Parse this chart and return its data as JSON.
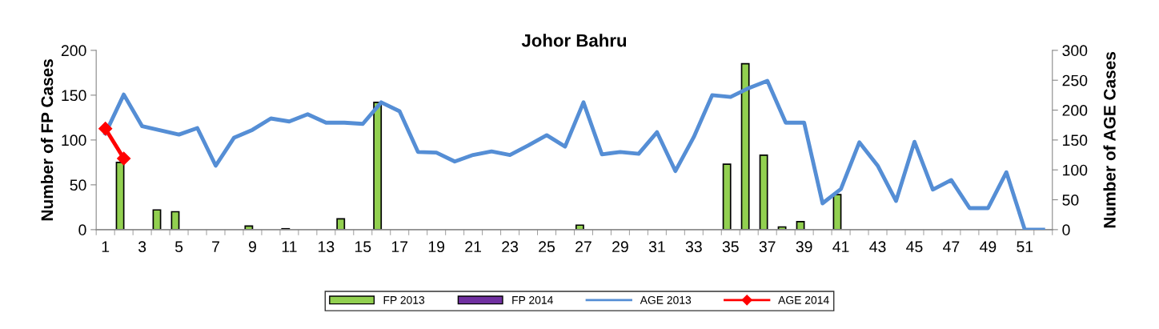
{
  "chart_data": {
    "type": "bar",
    "title": "Johor Bahru",
    "ylabel": "Number of FP Cases",
    "y2label": "Number of AGE Cases",
    "categories": [
      "1",
      null,
      "3",
      null,
      "5",
      null,
      "7",
      null,
      "9",
      null,
      "11",
      null,
      "13",
      null,
      "15",
      null,
      "17",
      null,
      "19",
      null,
      "21",
      null,
      "23",
      null,
      "25",
      null,
      "27",
      null,
      "29",
      null,
      "31",
      null,
      "33",
      null,
      "35",
      null,
      "37",
      null,
      "39",
      null,
      "41",
      null,
      "43",
      null,
      "45",
      null,
      "47",
      null,
      "49",
      null,
      "51",
      null
    ],
    "series": [
      {
        "name": "FP 2013",
        "color": "#92d050",
        "values": [
          0,
          75,
          0,
          22,
          20,
          0,
          0,
          0,
          4,
          0,
          1,
          0,
          0,
          12,
          0,
          142,
          0,
          0,
          0,
          0,
          0,
          0,
          0,
          0,
          0,
          0,
          5,
          0,
          0,
          0,
          0,
          0,
          0,
          0,
          73,
          185,
          83,
          3,
          9,
          0,
          39,
          0,
          0,
          0,
          0,
          0,
          0,
          0,
          0,
          0,
          0,
          0
        ]
      },
      {
        "name": "FP 2014",
        "color": "#7030a0",
        "values": [
          null,
          null,
          null,
          null,
          null,
          null,
          null,
          null,
          null,
          null,
          null,
          null,
          null,
          null,
          null,
          null,
          null,
          null,
          null,
          null,
          null,
          null,
          null,
          null,
          null,
          null,
          null,
          null,
          null,
          null,
          null,
          null,
          null,
          null,
          null,
          null,
          null,
          null,
          null,
          null,
          null,
          null,
          null,
          null,
          null,
          null,
          null,
          null,
          null,
          null,
          null,
          null
        ]
      },
      {
        "name": "AGE 2013",
        "type": "line",
        "axis": "y2",
        "color": "#558ed5",
        "marker": "none",
        "values": [
          161,
          226,
          173,
          166,
          159,
          170,
          107,
          154,
          167,
          186,
          181,
          193,
          179,
          179,
          177,
          213,
          198,
          130,
          129,
          114,
          125,
          131,
          125,
          141,
          158,
          139,
          213,
          126,
          130,
          127,
          163,
          98,
          155,
          225,
          222,
          237,
          249,
          179,
          179,
          44,
          68,
          146,
          107,
          48,
          147,
          67,
          83,
          36,
          36,
          96,
          0,
          0
        ]
      },
      {
        "name": "AGE 2014",
        "type": "line",
        "axis": "y2",
        "color": "#ff0000",
        "marker": "diamond",
        "values": [
          169,
          119,
          null,
          null,
          null,
          null,
          null,
          null,
          null,
          null,
          null,
          null,
          null,
          null,
          null,
          null,
          null,
          null,
          null,
          null,
          null,
          null,
          null,
          null,
          null,
          null,
          null,
          null,
          null,
          null,
          null,
          null,
          null,
          null,
          null,
          null,
          null,
          null,
          null,
          null,
          null,
          null,
          null,
          null,
          null,
          null,
          null,
          null,
          null,
          null,
          null,
          null
        ]
      }
    ],
    "ylim": [
      0,
      200
    ],
    "yticks": [
      0,
      50,
      100,
      150,
      200
    ],
    "y2lim": [
      0,
      300
    ],
    "y2ticks": [
      0,
      50,
      100,
      150,
      200,
      250,
      300
    ],
    "grid": false,
    "legend": "bottom"
  }
}
